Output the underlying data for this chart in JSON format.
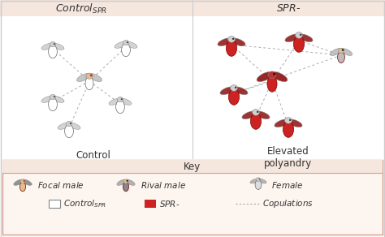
{
  "bg_color": "#ffffff",
  "key_bg": "#fdf5f0",
  "key_border": "#d4a090",
  "top_bar_bg": "#f5e6de",
  "divider_color": "#cccccc",
  "fly_red_color": "#cc2222",
  "dashed_line_color": "#aaaaaa",
  "key_title": "Key",
  "label_left": "Control",
  "label_right": "Elevated\npolyandry"
}
